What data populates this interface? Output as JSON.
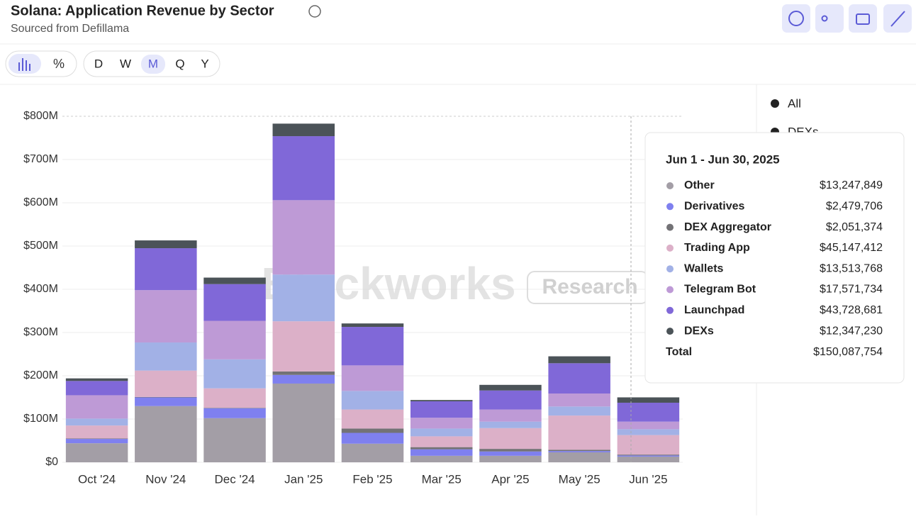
{
  "header": {
    "title": "Solana: Application Revenue by Sector",
    "subtitle": "Sourced from Defillama",
    "periods": [
      "D",
      "W",
      "M",
      "Q",
      "Y"
    ],
    "active_period": 2
  },
  "chart_data": {
    "type": "stacked_bar",
    "categories": [
      "Oct '24",
      "Nov '24",
      "Dec '24",
      "Jan '25",
      "Feb '25",
      "Mar '25",
      "Apr '25",
      "May '25",
      "Jun '25"
    ],
    "series": [
      {
        "name": "Other",
        "color": "#a39ea6",
        "values": [
          44000000,
          130000000,
          102000000,
          182000000,
          43000000,
          15000000,
          15000000,
          23000000,
          13247849
        ]
      },
      {
        "name": "Derivatives",
        "color": "#7f80ef",
        "values": [
          10000000,
          20000000,
          23000000,
          20000000,
          25000000,
          15000000,
          10000000,
          3000000,
          2479706
        ]
      },
      {
        "name": "DEX Aggregator",
        "color": "#737276",
        "values": [
          1000000,
          1000000,
          1000000,
          8000000,
          10000000,
          5000000,
          6000000,
          3000000,
          2051374
        ]
      },
      {
        "name": "Trading App",
        "color": "#dcb0c8",
        "values": [
          30000000,
          61000000,
          45000000,
          116000000,
          44000000,
          25000000,
          48000000,
          79000000,
          45147412
        ]
      },
      {
        "name": "Wallets",
        "color": "#a2b1e6",
        "values": [
          16000000,
          65000000,
          67000000,
          108000000,
          43000000,
          18000000,
          15000000,
          21000000,
          13513768
        ]
      },
      {
        "name": "Telegram Bot",
        "color": "#be9ad6",
        "values": [
          54000000,
          121000000,
          89000000,
          172000000,
          59000000,
          25000000,
          28000000,
          30000000,
          17571734
        ]
      },
      {
        "name": "Launchpad",
        "color": "#8068d8",
        "values": [
          33000000,
          97000000,
          85000000,
          148000000,
          89000000,
          38000000,
          44000000,
          70000000,
          43728681
        ]
      },
      {
        "name": "DEXs",
        "color": "#4b5358",
        "values": [
          6000000,
          18000000,
          15000000,
          29000000,
          8000000,
          3000000,
          13000000,
          16000000,
          12347230
        ]
      }
    ],
    "ylim": [
      0,
      800000000
    ],
    "yticks": [
      {
        "value": 0,
        "label": "$0"
      },
      {
        "value": 100000000,
        "label": "$100M"
      },
      {
        "value": 200000000,
        "label": "$200M"
      },
      {
        "value": 300000000,
        "label": "$300M"
      },
      {
        "value": 400000000,
        "label": "$400M"
      },
      {
        "value": 500000000,
        "label": "$500M"
      },
      {
        "value": 600000000,
        "label": "$600M"
      },
      {
        "value": 700000000,
        "label": "$700M"
      },
      {
        "value": 800000000,
        "label": "$800M"
      }
    ],
    "grid": true,
    "legend": [
      "All",
      "DEXs"
    ],
    "watermark": [
      "Blockworks",
      "Research"
    ],
    "tooltip": {
      "title": "Jun 1 - Jun 30, 2025",
      "values": [
        "$13,247,849",
        "$2,479,706",
        "$2,051,374",
        "$45,147,412",
        "$13,513,768",
        "$17,571,734",
        "$43,728,681",
        "$12,347,230"
      ],
      "total_label": "Total",
      "total": "$150,087,754"
    }
  }
}
